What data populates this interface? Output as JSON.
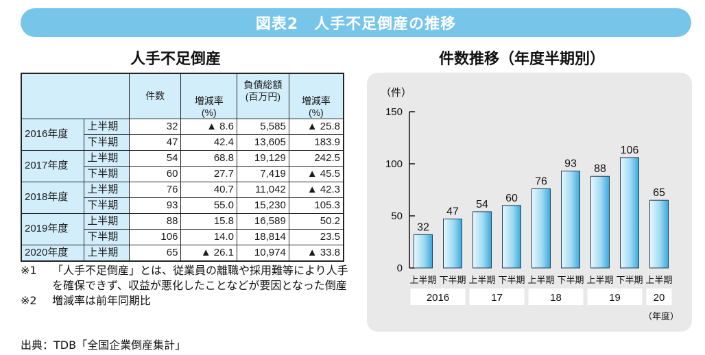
{
  "banner_title": "図表2　人手不足倒産の推移",
  "table": {
    "title": "人手不足倒産",
    "headers": {
      "count": "件数",
      "count_rate": "増減率\n(%)",
      "debt": "負債総額\n(百万円)",
      "debt_rate": "増減率\n(%)"
    },
    "years": [
      {
        "label": "2016年度",
        "rows": [
          {
            "half": "上半期",
            "count": "32",
            "count_rate": "▲ 8.6",
            "debt": "5,585",
            "debt_rate": "▲ 25.8"
          },
          {
            "half": "下半期",
            "count": "47",
            "count_rate": "42.4",
            "debt": "13,605",
            "debt_rate": "183.9"
          }
        ]
      },
      {
        "label": "2017年度",
        "rows": [
          {
            "half": "上半期",
            "count": "54",
            "count_rate": "68.8",
            "debt": "19,129",
            "debt_rate": "242.5"
          },
          {
            "half": "下半期",
            "count": "60",
            "count_rate": "27.7",
            "debt": "7,419",
            "debt_rate": "▲ 45.5"
          }
        ]
      },
      {
        "label": "2018年度",
        "rows": [
          {
            "half": "上半期",
            "count": "76",
            "count_rate": "40.7",
            "debt": "11,042",
            "debt_rate": "▲ 42.3"
          },
          {
            "half": "下半期",
            "count": "93",
            "count_rate": "55.0",
            "debt": "15,230",
            "debt_rate": "105.3"
          }
        ]
      },
      {
        "label": "2019年度",
        "rows": [
          {
            "half": "上半期",
            "count": "88",
            "count_rate": "15.8",
            "debt": "16,589",
            "debt_rate": "50.2"
          },
          {
            "half": "下半期",
            "count": "106",
            "count_rate": "14.0",
            "debt": "18,814",
            "debt_rate": "23.5"
          }
        ]
      },
      {
        "label": "2020年度",
        "rows": [
          {
            "half": "上半期",
            "count": "65",
            "count_rate": "▲ 26.1",
            "debt": "10,974",
            "debt_rate": "▲ 33.8"
          }
        ]
      }
    ]
  },
  "notes": [
    {
      "mark": "※1",
      "text": "「人手不足倒産」とは、従業員の離職や採用難等により人手を確保できず、収益が悪化したことなどが要因となった倒産"
    },
    {
      "mark": "※2",
      "text": "増減率は前年同期比"
    }
  ],
  "source": "出典：TDB「全国企業倒産集計」",
  "chart_data": {
    "type": "bar",
    "title": "件数推移（年度半期別）",
    "ylabel": "（件）",
    "xlabel": "（年度）",
    "ylim": [
      0,
      150
    ],
    "yticks": [
      0,
      50,
      100,
      150
    ],
    "categories": [
      "上半期",
      "下半期",
      "上半期",
      "下半期",
      "上半期",
      "下半期",
      "上半期",
      "下半期",
      "上半期"
    ],
    "values": [
      32,
      47,
      54,
      60,
      76,
      93,
      88,
      106,
      65
    ],
    "year_groups": [
      {
        "label": "2016",
        "span": 2
      },
      {
        "label": "17",
        "span": 2
      },
      {
        "label": "18",
        "span": 2
      },
      {
        "label": "19",
        "span": 2
      },
      {
        "label": "20",
        "span": 1
      }
    ],
    "colors": {
      "bar_light": "#e8f7fd",
      "bar_dark": "#39a9dc",
      "bar_edge": "#1f3f55",
      "panel": "#e9e9e9"
    }
  }
}
